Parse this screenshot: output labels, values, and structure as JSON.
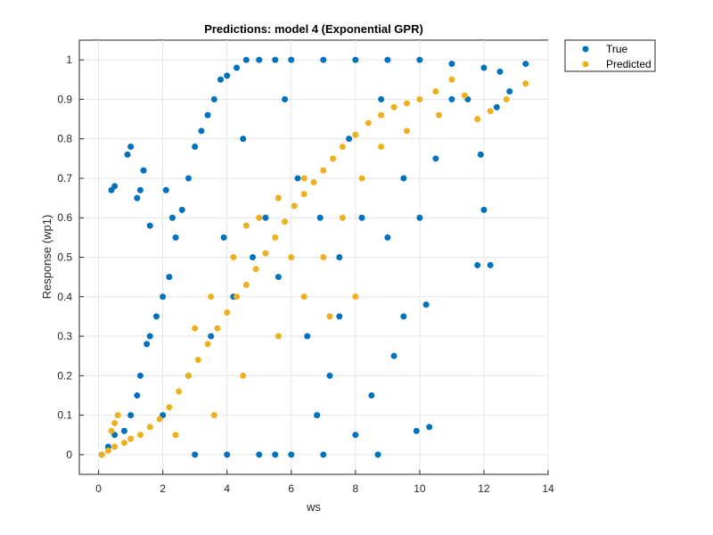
{
  "chart_data": {
    "type": "scatter",
    "title": "Predictions: model 4 (Exponential GPR)",
    "xlabel": "ws",
    "ylabel": "Response (wp1)",
    "xlim": [
      -0.6,
      14
    ],
    "ylim": [
      -0.05,
      1.05
    ],
    "xticks": [
      0,
      2,
      4,
      6,
      8,
      10,
      12,
      14
    ],
    "yticks": [
      0,
      0.1,
      0.2,
      0.3,
      0.4,
      0.5,
      0.6,
      0.7,
      0.8,
      0.9,
      1
    ],
    "grid": true,
    "legend_position": "outside-top-right",
    "series": [
      {
        "name": "True",
        "color": "#0072BD",
        "points": [
          [
            0.1,
            0.0
          ],
          [
            0.3,
            0.02
          ],
          [
            0.5,
            0.05
          ],
          [
            0.8,
            0.06
          ],
          [
            1.0,
            0.1
          ],
          [
            1.2,
            0.15
          ],
          [
            1.3,
            0.2
          ],
          [
            1.5,
            0.28
          ],
          [
            1.6,
            0.3
          ],
          [
            1.8,
            0.35
          ],
          [
            2.0,
            0.4
          ],
          [
            2.2,
            0.45
          ],
          [
            2.4,
            0.55
          ],
          [
            2.6,
            0.62
          ],
          [
            2.8,
            0.7
          ],
          [
            3.0,
            0.78
          ],
          [
            3.2,
            0.82
          ],
          [
            3.4,
            0.86
          ],
          [
            3.6,
            0.9
          ],
          [
            3.8,
            0.95
          ],
          [
            4.0,
            0.96
          ],
          [
            4.3,
            0.98
          ],
          [
            4.6,
            1.0
          ],
          [
            5.0,
            1.0
          ],
          [
            5.5,
            1.0
          ],
          [
            6.0,
            1.0
          ],
          [
            7.0,
            1.0
          ],
          [
            8.0,
            1.0
          ],
          [
            9.0,
            1.0
          ],
          [
            10.0,
            1.0
          ],
          [
            11.0,
            0.99
          ],
          [
            12.0,
            0.98
          ],
          [
            12.5,
            0.97
          ],
          [
            13.3,
            0.99
          ],
          [
            12.8,
            0.92
          ],
          [
            12.4,
            0.88
          ],
          [
            11.5,
            0.9
          ],
          [
            11.0,
            0.9
          ],
          [
            11.9,
            0.76
          ],
          [
            12.0,
            0.62
          ],
          [
            11.8,
            0.48
          ],
          [
            12.2,
            0.48
          ],
          [
            10.5,
            0.75
          ],
          [
            10.2,
            0.38
          ],
          [
            9.5,
            0.35
          ],
          [
            9.2,
            0.25
          ],
          [
            8.5,
            0.15
          ],
          [
            8.0,
            0.05
          ],
          [
            8.7,
            0.0
          ],
          [
            9.9,
            0.06
          ],
          [
            10.3,
            0.07
          ],
          [
            7.0,
            0.0
          ],
          [
            6.0,
            0.0
          ],
          [
            5.5,
            0.0
          ],
          [
            5.0,
            0.0
          ],
          [
            4.0,
            0.0
          ],
          [
            3.0,
            0.0
          ],
          [
            0.4,
            0.67
          ],
          [
            0.5,
            0.68
          ],
          [
            1.0,
            0.78
          ],
          [
            0.9,
            0.76
          ],
          [
            1.4,
            0.72
          ],
          [
            1.3,
            0.67
          ],
          [
            1.2,
            0.65
          ],
          [
            2.1,
            0.67
          ],
          [
            2.3,
            0.6
          ],
          [
            1.6,
            0.58
          ],
          [
            7.5,
            0.5
          ],
          [
            8.2,
            0.6
          ],
          [
            9.0,
            0.55
          ],
          [
            6.5,
            0.3
          ],
          [
            7.2,
            0.2
          ],
          [
            6.8,
            0.1
          ],
          [
            4.8,
            0.5
          ],
          [
            5.2,
            0.6
          ],
          [
            3.5,
            0.3
          ],
          [
            2.8,
            0.2
          ],
          [
            2.0,
            0.1
          ],
          [
            4.5,
            0.8
          ],
          [
            5.8,
            0.9
          ],
          [
            6.2,
            0.7
          ],
          [
            7.8,
            0.8
          ],
          [
            8.8,
            0.9
          ],
          [
            9.5,
            0.7
          ],
          [
            10.0,
            0.6
          ],
          [
            3.9,
            0.55
          ],
          [
            4.2,
            0.4
          ],
          [
            5.6,
            0.45
          ],
          [
            6.9,
            0.6
          ],
          [
            7.5,
            0.35
          ]
        ]
      },
      {
        "name": "Predicted",
        "color": "#EDB120",
        "points": [
          [
            0.1,
            0.0
          ],
          [
            0.3,
            0.01
          ],
          [
            0.5,
            0.02
          ],
          [
            0.8,
            0.03
          ],
          [
            1.0,
            0.04
          ],
          [
            1.3,
            0.05
          ],
          [
            1.6,
            0.07
          ],
          [
            1.9,
            0.09
          ],
          [
            2.2,
            0.12
          ],
          [
            2.5,
            0.16
          ],
          [
            2.8,
            0.2
          ],
          [
            3.1,
            0.24
          ],
          [
            3.4,
            0.28
          ],
          [
            3.7,
            0.32
          ],
          [
            4.0,
            0.36
          ],
          [
            4.3,
            0.4
          ],
          [
            4.6,
            0.43
          ],
          [
            4.9,
            0.47
          ],
          [
            5.2,
            0.51
          ],
          [
            5.5,
            0.55
          ],
          [
            5.8,
            0.59
          ],
          [
            6.1,
            0.63
          ],
          [
            6.4,
            0.66
          ],
          [
            6.7,
            0.69
          ],
          [
            7.0,
            0.72
          ],
          [
            7.3,
            0.75
          ],
          [
            7.6,
            0.78
          ],
          [
            8.0,
            0.81
          ],
          [
            8.4,
            0.84
          ],
          [
            8.8,
            0.86
          ],
          [
            9.2,
            0.88
          ],
          [
            9.6,
            0.89
          ],
          [
            10.0,
            0.9
          ],
          [
            10.5,
            0.92
          ],
          [
            11.0,
            0.95
          ],
          [
            11.4,
            0.91
          ],
          [
            11.8,
            0.85
          ],
          [
            12.2,
            0.87
          ],
          [
            12.7,
            0.9
          ],
          [
            13.3,
            0.94
          ],
          [
            0.4,
            0.06
          ],
          [
            0.5,
            0.08
          ],
          [
            0.6,
            0.1
          ],
          [
            2.4,
            0.05
          ],
          [
            3.6,
            0.1
          ],
          [
            4.5,
            0.2
          ],
          [
            5.6,
            0.3
          ],
          [
            6.4,
            0.4
          ],
          [
            7.0,
            0.5
          ],
          [
            7.6,
            0.6
          ],
          [
            8.2,
            0.7
          ],
          [
            8.8,
            0.78
          ],
          [
            9.6,
            0.82
          ],
          [
            10.6,
            0.86
          ],
          [
            3.0,
            0.32
          ],
          [
            3.5,
            0.4
          ],
          [
            4.6,
            0.58
          ],
          [
            5.6,
            0.65
          ],
          [
            6.4,
            0.7
          ],
          [
            4.2,
            0.5
          ],
          [
            5.0,
            0.6
          ],
          [
            6.0,
            0.5
          ],
          [
            7.2,
            0.35
          ],
          [
            8.0,
            0.4
          ]
        ]
      }
    ]
  }
}
